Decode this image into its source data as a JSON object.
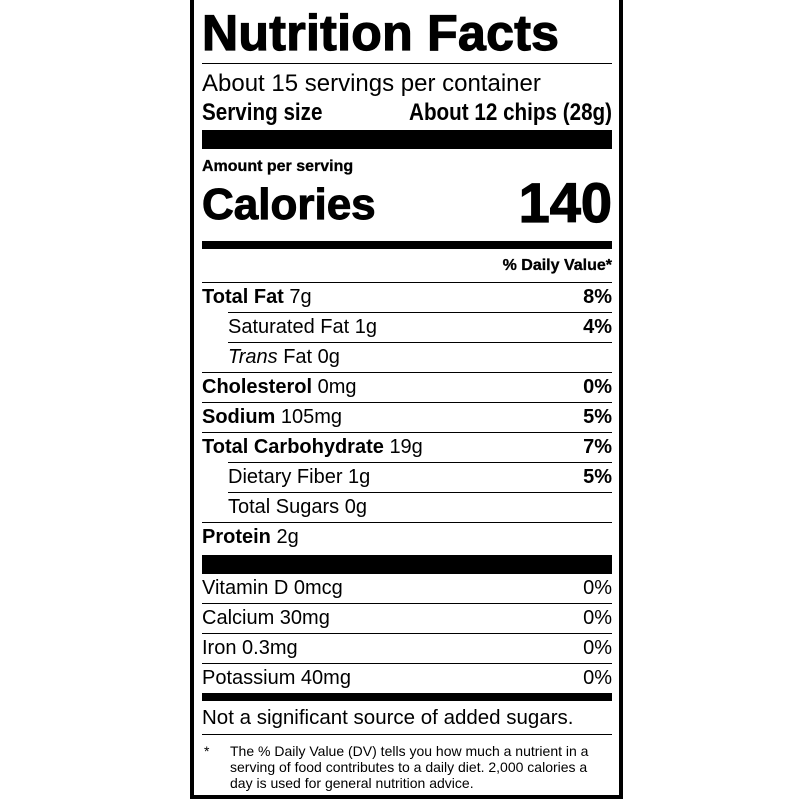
{
  "title": "Nutrition Facts",
  "servings_per_container": "About 15 servings per container",
  "serving_size": {
    "label": "Serving size",
    "value": "About 12 chips (28g)"
  },
  "amount_per_serving": "Amount per serving",
  "calories": {
    "label": "Calories",
    "value": "140"
  },
  "daily_value_header": "% Daily Value*",
  "nutrients": [
    {
      "name": "Total Fat",
      "amount": "7g",
      "dv": "8%"
    },
    {
      "name": "Saturated Fat",
      "amount": "1g",
      "dv": "4%"
    },
    {
      "name": "Trans",
      "name_suffix": "Fat",
      "amount": "0g",
      "dv": ""
    },
    {
      "name": "Cholesterol",
      "amount": "0mg",
      "dv": "0%"
    },
    {
      "name": "Sodium",
      "amount": "105mg",
      "dv": "5%"
    },
    {
      "name": "Total Carbohydrate",
      "amount": "19g",
      "dv": "7%"
    },
    {
      "name": "Dietary Fiber",
      "amount": "1g",
      "dv": "5%"
    },
    {
      "name": "Total Sugars",
      "amount": "0g",
      "dv": ""
    },
    {
      "name": "Protein",
      "amount": "2g",
      "dv": ""
    }
  ],
  "vitamins": [
    {
      "text": "Vitamin D 0mcg",
      "dv": "0%"
    },
    {
      "text": "Calcium 30mg",
      "dv": "0%"
    },
    {
      "text": "Iron 0.3mg",
      "dv": "0%"
    },
    {
      "text": "Potassium 40mg",
      "dv": "0%"
    }
  ],
  "added_sugars_note": "Not a significant source of added sugars.",
  "footnote": {
    "marker": "*",
    "text": "The % Daily Value (DV) tells you how much a nutrient in a serving of food contributes to a daily diet. 2,000 calories a day is used for general nutrition advice."
  }
}
